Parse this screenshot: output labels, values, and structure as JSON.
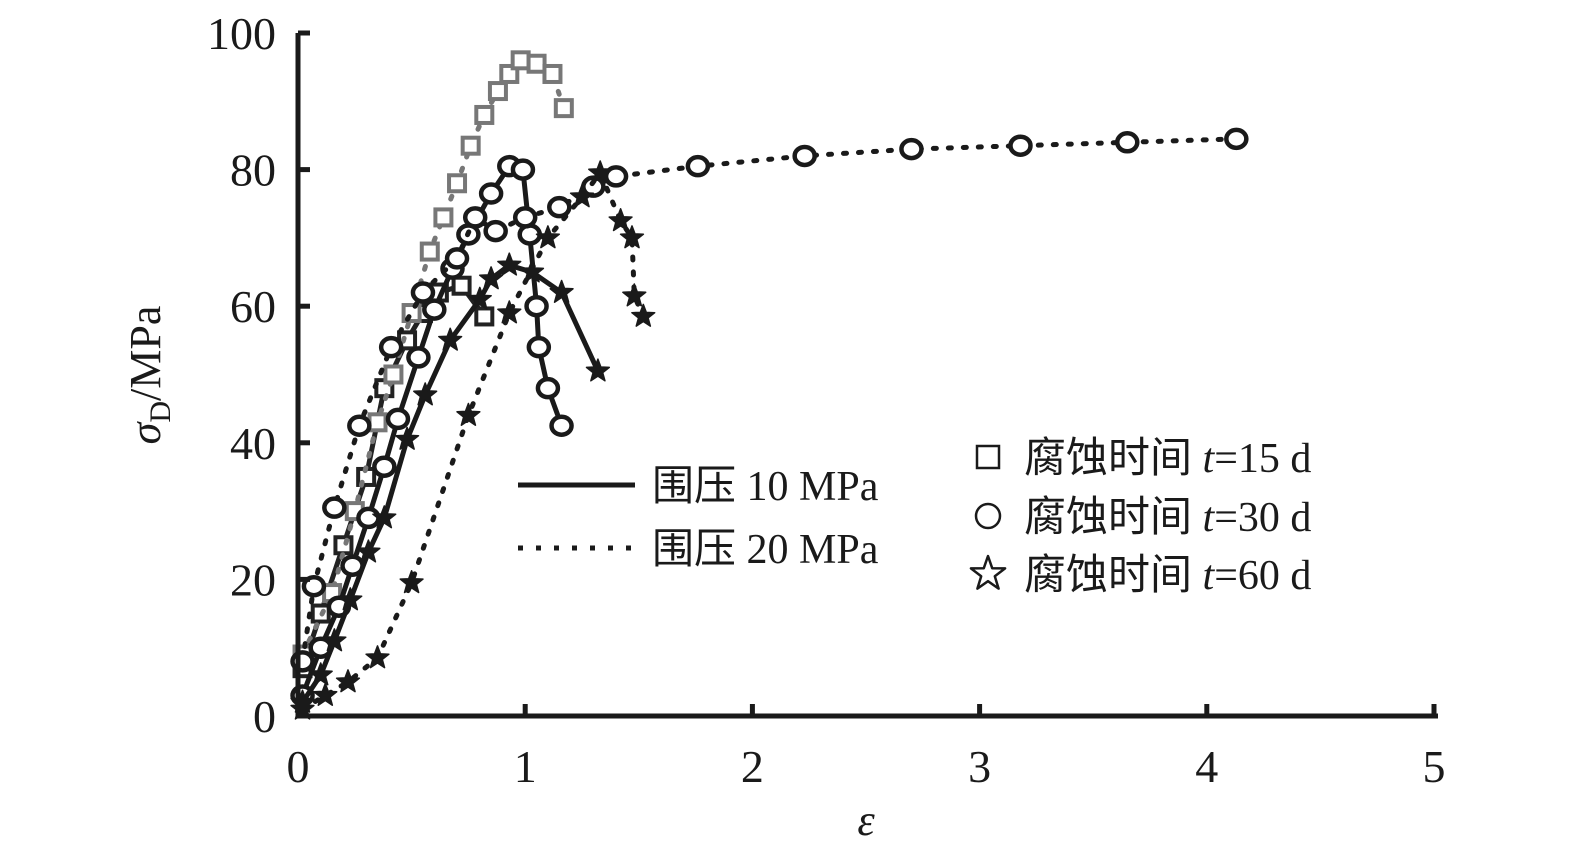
{
  "chart_data": {
    "type": "line",
    "title": "",
    "xlabel": "ε",
    "ylabel": {
      "symbol": "σ",
      "subscript": "D",
      "unit": "/MPa"
    },
    "xlim": [
      0,
      5
    ],
    "ylim": [
      0,
      100
    ],
    "x_ticks": [
      "0",
      "1",
      "2",
      "3",
      "4",
      "5"
    ],
    "y_ticks": [
      "0",
      "20",
      "40",
      "60",
      "80",
      "100"
    ],
    "grid": false,
    "legend": {
      "line_styles": [
        {
          "style": "solid",
          "label": "围压 10 MPa"
        },
        {
          "style": "dotted",
          "label": "围压 20 MPa"
        }
      ],
      "markers": [
        {
          "marker": "square",
          "prefix": "腐蚀时间 ",
          "var": "t",
          "suffix": "=15 d"
        },
        {
          "marker": "circle",
          "prefix": "腐蚀时间 ",
          "var": "t",
          "suffix": "=30 d"
        },
        {
          "marker": "star",
          "prefix": "腐蚀时间 ",
          "var": "t",
          "suffix": "=60 d"
        }
      ]
    },
    "series": [
      {
        "pressure": "围压 10 MPa",
        "time": "t=15 d",
        "line": "solid",
        "marker": "square",
        "color": "#222222",
        "points": [
          [
            0.02,
            7
          ],
          [
            0.1,
            15
          ],
          [
            0.2,
            25
          ],
          [
            0.3,
            35
          ],
          [
            0.38,
            48
          ],
          [
            0.48,
            55
          ],
          [
            0.55,
            59
          ],
          [
            0.62,
            62
          ],
          [
            0.72,
            63
          ],
          [
            0.82,
            58.5
          ]
        ]
      },
      {
        "pressure": "围压 20 MPa",
        "time": "t=15 d",
        "line": "dotted",
        "marker": "square",
        "color": "#777777",
        "points": [
          [
            0.02,
            9
          ],
          [
            0.15,
            18
          ],
          [
            0.25,
            30
          ],
          [
            0.35,
            43
          ],
          [
            0.42,
            50
          ],
          [
            0.5,
            59
          ],
          [
            0.58,
            68
          ],
          [
            0.64,
            73
          ],
          [
            0.7,
            78
          ],
          [
            0.76,
            83.5
          ],
          [
            0.82,
            88
          ],
          [
            0.88,
            91.5
          ],
          [
            0.93,
            94
          ],
          [
            0.98,
            96
          ],
          [
            1.05,
            95.5
          ],
          [
            1.12,
            94
          ],
          [
            1.17,
            89
          ]
        ]
      },
      {
        "pressure": "围压 10 MPa",
        "time": "t=30 d",
        "line": "solid",
        "marker": "circle",
        "color": "#1a1a1a",
        "points": [
          [
            0.02,
            3
          ],
          [
            0.1,
            10
          ],
          [
            0.18,
            16
          ],
          [
            0.24,
            22
          ],
          [
            0.31,
            29
          ],
          [
            0.38,
            36.5
          ],
          [
            0.44,
            43.5
          ],
          [
            0.53,
            52.5
          ],
          [
            0.6,
            59.5
          ],
          [
            0.68,
            65.5
          ],
          [
            0.75,
            70.5
          ],
          [
            0.85,
            76.5
          ],
          [
            0.93,
            80.5
          ],
          [
            0.99,
            80
          ],
          [
            1.02,
            70.5
          ],
          [
            1.05,
            60
          ],
          [
            1.06,
            54
          ],
          [
            1.1,
            48
          ],
          [
            1.16,
            42.5
          ]
        ]
      },
      {
        "pressure": "围压 20 MPa",
        "time": "t=30 d",
        "line": "dotted",
        "marker": "circle",
        "color": "#1a1a1a",
        "points": [
          [
            0.02,
            8
          ],
          [
            0.07,
            19
          ],
          [
            0.16,
            30.5
          ],
          [
            0.27,
            42.5
          ],
          [
            0.41,
            54
          ],
          [
            0.55,
            62
          ],
          [
            0.7,
            67
          ],
          [
            0.78,
            73
          ],
          [
            0.87,
            71
          ],
          [
            1.0,
            73
          ],
          [
            1.15,
            74.5
          ],
          [
            1.3,
            77.5
          ],
          [
            1.4,
            79
          ],
          [
            1.76,
            80.5
          ],
          [
            2.23,
            82
          ],
          [
            2.7,
            83
          ],
          [
            3.18,
            83.5
          ],
          [
            3.65,
            84
          ],
          [
            4.13,
            84.5
          ]
        ]
      },
      {
        "pressure": "围压 10 MPa",
        "time": "t=60 d",
        "line": "solid",
        "marker": "star",
        "color": "#1a1a1a",
        "points": [
          [
            0.02,
            2
          ],
          [
            0.1,
            6
          ],
          [
            0.16,
            11
          ],
          [
            0.23,
            17
          ],
          [
            0.31,
            24
          ],
          [
            0.38,
            29
          ],
          [
            0.48,
            40.5
          ],
          [
            0.56,
            47
          ],
          [
            0.67,
            55
          ],
          [
            0.8,
            61
          ],
          [
            0.85,
            64
          ],
          [
            0.93,
            66
          ],
          [
            1.03,
            65
          ],
          [
            1.16,
            62
          ],
          [
            1.32,
            50.5
          ]
        ]
      },
      {
        "pressure": "围压 20 MPa",
        "time": "t=60 d",
        "line": "dotted",
        "marker": "star",
        "color": "#1a1a1a",
        "points": [
          [
            0.02,
            1
          ],
          [
            0.12,
            3
          ],
          [
            0.22,
            5
          ],
          [
            0.35,
            8.5
          ],
          [
            0.5,
            19.5
          ],
          [
            0.75,
            44
          ],
          [
            0.93,
            59
          ],
          [
            1.1,
            70
          ],
          [
            1.25,
            76
          ],
          [
            1.33,
            79.5
          ],
          [
            1.42,
            72.5
          ],
          [
            1.47,
            70
          ],
          [
            1.48,
            61.5
          ],
          [
            1.52,
            58.5
          ]
        ]
      }
    ]
  }
}
